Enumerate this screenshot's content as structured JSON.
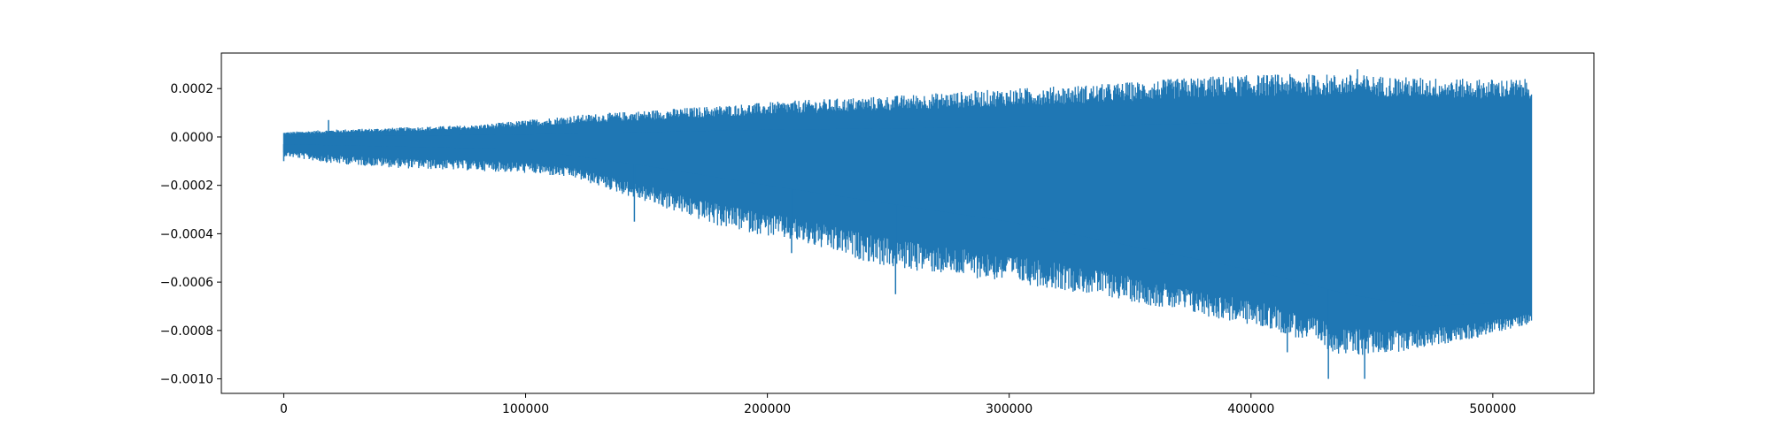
{
  "chart_data": {
    "type": "line",
    "title": "",
    "xlabel": "",
    "ylabel": "",
    "xlim": [
      -25800,
      541800
    ],
    "ylim": [
      -0.00106,
      0.000347
    ],
    "x_ticks": [
      {
        "value": 0,
        "label": "0"
      },
      {
        "value": 100000,
        "label": "100000"
      },
      {
        "value": 200000,
        "label": "200000"
      },
      {
        "value": 300000,
        "label": "300000"
      },
      {
        "value": 400000,
        "label": "400000"
      },
      {
        "value": 500000,
        "label": "500000"
      }
    ],
    "y_ticks": [
      {
        "value": 0.0002,
        "label": "0.0002"
      },
      {
        "value": 0.0,
        "label": "0.0000"
      },
      {
        "value": -0.0002,
        "label": "−0.0002"
      },
      {
        "value": -0.0004,
        "label": "−0.0004"
      },
      {
        "value": -0.0006,
        "label": "−0.0006"
      },
      {
        "value": -0.0008,
        "label": "−0.0008"
      },
      {
        "value": -0.001,
        "label": "−0.0010"
      }
    ],
    "grid": false,
    "legend": "none",
    "series": [
      {
        "color": "#1f77b4",
        "x_range": [
          0,
          516000
        ],
        "envelope": {
          "x": [
            0,
            20000,
            50000,
            80000,
            100000,
            120000,
            150000,
            180000,
            210000,
            250000,
            300000,
            340000,
            380000,
            410000,
            440000,
            460000,
            490000,
            516000
          ],
          "upper": [
            2e-05,
            3e-05,
            4e-05,
            5e-05,
            7e-05,
            9e-05,
            0.00011,
            0.00013,
            0.00015,
            0.00017,
            0.0002,
            0.00022,
            0.00025,
            0.00026,
            0.00026,
            0.00025,
            0.00024,
            0.00024
          ],
          "lower": [
            -8e-05,
            -0.00011,
            -0.00013,
            -0.00014,
            -0.00015,
            -0.00017,
            -0.00027,
            -0.00037,
            -0.00043,
            -0.00054,
            -0.0006,
            -0.00066,
            -0.00074,
            -0.0008,
            -0.00091,
            -0.00089,
            -0.00084,
            -0.00077
          ]
        },
        "dense_band": {
          "x": [
            0,
            100000,
            150000,
            200000,
            300000,
            350000,
            400000,
            440000,
            470000,
            516000
          ],
          "upper": [
            0.0,
            1e-05,
            2e-05,
            3e-05,
            4e-05,
            5e-05,
            6e-05,
            6e-05,
            6e-05,
            6e-05
          ],
          "lower": [
            -3e-05,
            -5e-05,
            -0.00012,
            -0.0002,
            -0.00035,
            -0.00045,
            -0.00055,
            -0.00065,
            -0.0007,
            -0.00068
          ]
        },
        "spikes": [
          {
            "x": 0,
            "y": -0.0001
          },
          {
            "x": 18500,
            "y": 7e-05
          },
          {
            "x": 145000,
            "y": -0.00035
          },
          {
            "x": 210000,
            "y": -0.00048
          },
          {
            "x": 253000,
            "y": -0.00065
          },
          {
            "x": 415000,
            "y": -0.00089
          },
          {
            "x": 432000,
            "y": -0.001
          },
          {
            "x": 447000,
            "y": -0.001
          },
          {
            "x": 444000,
            "y": 0.00028
          }
        ]
      }
    ]
  }
}
